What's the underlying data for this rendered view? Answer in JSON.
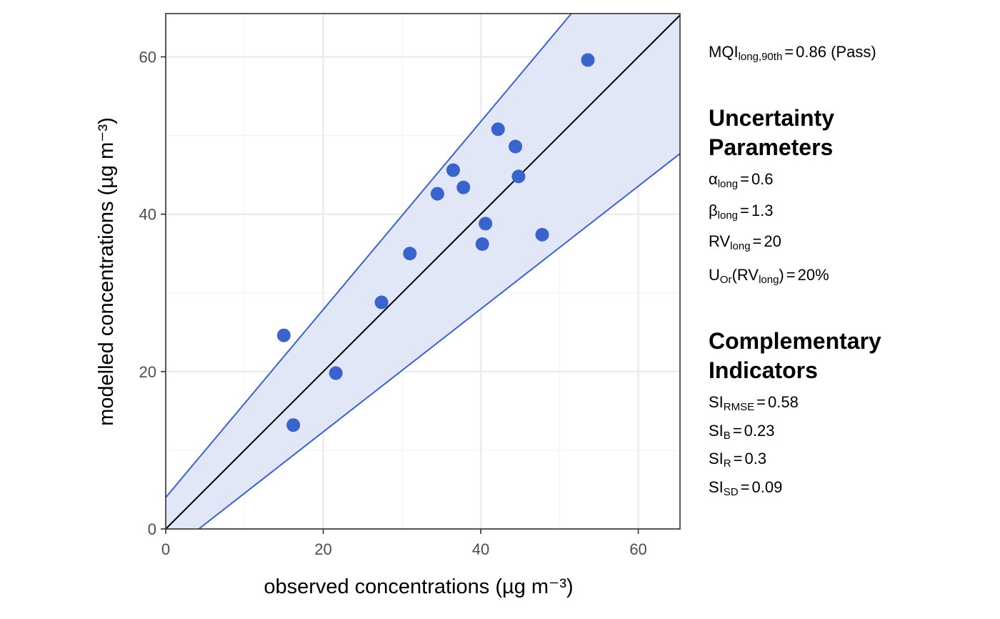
{
  "chart_data": {
    "type": "scatter",
    "xlabel": "observed concentrations (µg m⁻³)",
    "ylabel": "modelled concentrations (µg m⁻³)",
    "xlim": [
      0,
      65.3
    ],
    "ylim": [
      0,
      65.5
    ],
    "x_ticks": [
      0,
      20,
      40,
      60
    ],
    "y_ticks": [
      0,
      20,
      40,
      60
    ],
    "grid": true,
    "colors": {
      "points": "#3a63cc",
      "band_fill": "#e2e7f8",
      "band_line": "#3a63cc",
      "identity_line": "#000000",
      "grid_major": "#ebebeb",
      "grid_minor": "#f4f4f4",
      "panel_border": "#333333"
    },
    "identity_line": {
      "x": [
        0,
        65.3
      ],
      "y": [
        0,
        65.3
      ]
    },
    "uncertainty_band": {
      "upper": {
        "x": [
          0,
          51.5
        ],
        "y": [
          4.0,
          65.5
        ]
      },
      "lower": {
        "x": [
          4.2,
          65.3
        ],
        "y": [
          0,
          47.7
        ]
      }
    },
    "points": [
      {
        "x": 15.0,
        "y": 24.6
      },
      {
        "x": 16.2,
        "y": 13.2
      },
      {
        "x": 21.6,
        "y": 19.8
      },
      {
        "x": 27.4,
        "y": 28.8
      },
      {
        "x": 31.0,
        "y": 35.0
      },
      {
        "x": 34.5,
        "y": 42.6
      },
      {
        "x": 36.5,
        "y": 45.6
      },
      {
        "x": 37.8,
        "y": 43.4
      },
      {
        "x": 40.2,
        "y": 36.2
      },
      {
        "x": 40.6,
        "y": 38.8
      },
      {
        "x": 42.2,
        "y": 50.8
      },
      {
        "x": 44.4,
        "y": 48.6
      },
      {
        "x": 44.8,
        "y": 44.8
      },
      {
        "x": 47.8,
        "y": 37.4
      },
      {
        "x": 53.6,
        "y": 59.6
      }
    ]
  },
  "annotations": {
    "mqi": {
      "base": "MQI",
      "sub": "long,90th",
      "eq": "=",
      "value": "0.86 (Pass)"
    },
    "uncertainty": {
      "heading_line1": "Uncertainty",
      "heading_line2": "Parameters",
      "alpha": {
        "base": "α",
        "sub": "long",
        "eq": "=",
        "value": "0.6"
      },
      "beta": {
        "base": "β",
        "sub": "long",
        "eq": "=",
        "value": "1.3"
      },
      "rv": {
        "base": "RV",
        "sub": "long",
        "eq": "=",
        "value": "20"
      },
      "uor": {
        "base": "U",
        "sub": "Or",
        "open": "(RV",
        "inner_sub": "long",
        "close": ")",
        "eq": "=",
        "value": "20%"
      }
    },
    "complementary": {
      "heading_line1": "Complementary",
      "heading_line2": "Indicators",
      "si_rmse": {
        "base": "SI",
        "sub": "RMSE",
        "eq": "=",
        "value": "0.58"
      },
      "si_b": {
        "base": "SI",
        "sub": "B",
        "eq": "=",
        "value": "0.23"
      },
      "si_r": {
        "base": "SI",
        "sub": "R",
        "eq": "=",
        "value": "0.3"
      },
      "si_sd": {
        "base": "SI",
        "sub": "SD",
        "eq": "=",
        "value": "0.09"
      }
    }
  }
}
